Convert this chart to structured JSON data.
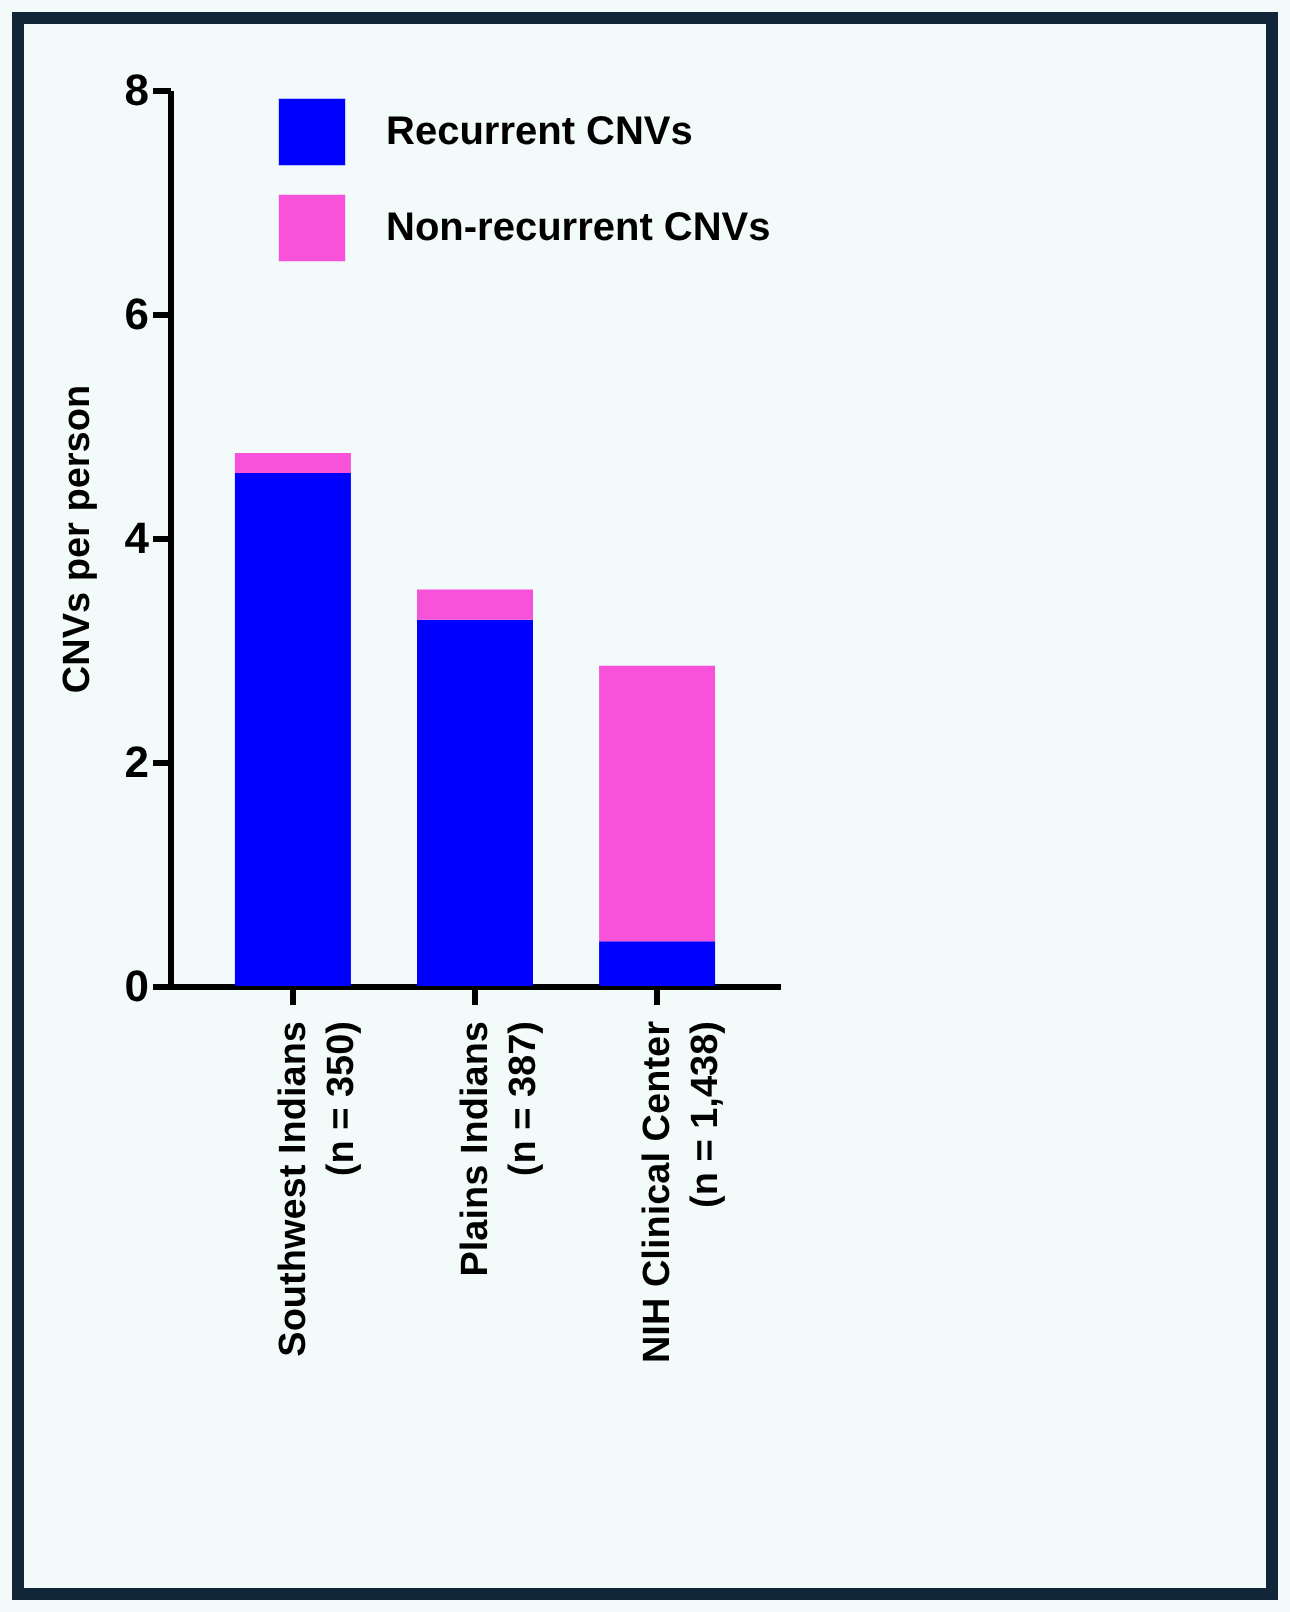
{
  "chart_data": {
    "type": "bar",
    "ylabel": "CNVs per person",
    "categories": [
      "Southwest Indians\n(n = 350)",
      "Plains Indians\n(n = 387)",
      "NIH Clinical Center\n(n = 1,438)"
    ],
    "stacked": true,
    "series": [
      {
        "name": "Recurrent CNVs",
        "color": "#0000ff",
        "values": [
          4.58,
          3.27,
          0.4
        ]
      },
      {
        "name": "Non-recurrent CNVs",
        "color": "#f752d9",
        "values": [
          0.18,
          0.27,
          2.46
        ]
      }
    ],
    "ylim": [
      0,
      8
    ],
    "yticks": [
      0,
      2,
      4,
      6,
      8
    ],
    "legend": "top right"
  }
}
